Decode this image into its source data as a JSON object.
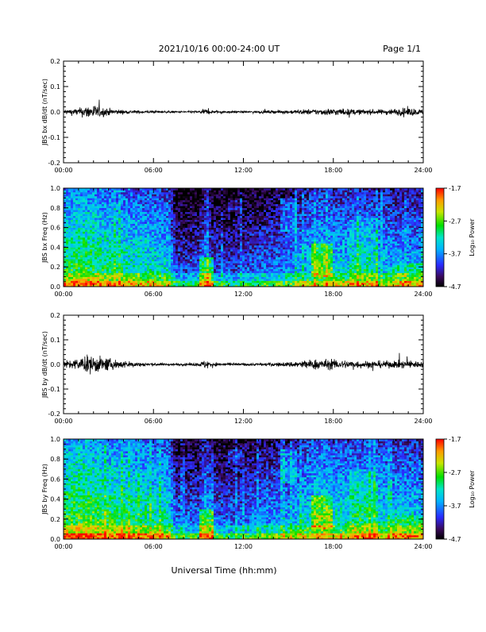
{
  "header": {
    "title": "2021/10/16   00:00-24:00 UT",
    "page": "Page 1/1"
  },
  "footer": {
    "xlabel": "Universal Time (hh:mm)"
  },
  "colorbar": {
    "label": "Log₁₀ Power",
    "ticks": [
      "-1.7",
      "-2.7",
      "-3.7",
      "-4.7"
    ],
    "values": [
      -1.7,
      -2.7,
      -3.7,
      -4.7
    ],
    "range": [
      -4.7,
      -1.7
    ]
  },
  "chart_data": [
    {
      "type": "line",
      "panel": "bx-waveform",
      "ylabel": "JBS bx dB/dt (nT/sec)",
      "ylim": [
        -0.2,
        0.2
      ],
      "yticks": [
        "0.2",
        "0.1",
        "0.0",
        "-0.1",
        "-0.2"
      ],
      "ytick_values": [
        0.2,
        0.1,
        0.0,
        -0.1,
        -0.2
      ],
      "xlim": [
        "00:00",
        "24:00"
      ],
      "xticks": [
        "00:00",
        "06:00",
        "12:00",
        "18:00",
        "24:00"
      ],
      "envelope": {
        "x_hours": [
          0,
          1,
          1.5,
          2,
          2.5,
          3,
          4,
          6,
          7,
          8,
          9,
          9.5,
          10,
          11,
          12,
          13,
          14,
          15,
          16,
          17,
          18,
          19,
          20,
          21,
          22,
          23,
          24
        ],
        "amplitude": [
          0.02,
          0.03,
          0.05,
          0.06,
          0.04,
          0.03,
          0.015,
          0.01,
          0.008,
          0.008,
          0.01,
          0.025,
          0.012,
          0.008,
          0.008,
          0.01,
          0.012,
          0.015,
          0.02,
          0.025,
          0.03,
          0.025,
          0.02,
          0.02,
          0.025,
          0.035,
          0.02
        ]
      }
    },
    {
      "type": "heatmap",
      "panel": "bx-spectrogram",
      "ylabel": "JBS bx Freq (Hz)",
      "ylim": [
        0.0,
        1.0
      ],
      "yticks": [
        "1.0",
        "0.8",
        "0.6",
        "0.4",
        "0.2",
        "0.0"
      ],
      "ytick_values": [
        1.0,
        0.8,
        0.6,
        0.4,
        0.2,
        0.0
      ],
      "xlim": [
        "00:00",
        "24:00"
      ],
      "xticks": [
        "00:00",
        "06:00",
        "12:00",
        "18:00",
        "24:00"
      ],
      "zlim": [
        -4.7,
        -1.7
      ]
    },
    {
      "type": "line",
      "panel": "by-waveform",
      "ylabel": "JBS by dB/dt (nT/sec)",
      "ylim": [
        -0.2,
        0.2
      ],
      "yticks": [
        "0.2",
        "0.1",
        "0.0",
        "-0.1",
        "-0.2"
      ],
      "ytick_values": [
        0.2,
        0.1,
        0.0,
        -0.1,
        -0.2
      ],
      "xlim": [
        "00:00",
        "24:00"
      ],
      "xticks": [
        "00:00",
        "06:00",
        "12:00",
        "18:00",
        "24:00"
      ],
      "envelope": {
        "x_hours": [
          0,
          1,
          1.5,
          2,
          2.5,
          3,
          4,
          6,
          7,
          8,
          9,
          9.5,
          10,
          11,
          12,
          13,
          14,
          15,
          16,
          17,
          18,
          19,
          20,
          21,
          22,
          23,
          24
        ],
        "amplitude": [
          0.03,
          0.05,
          0.07,
          0.08,
          0.06,
          0.05,
          0.03,
          0.012,
          0.01,
          0.01,
          0.015,
          0.04,
          0.015,
          0.01,
          0.01,
          0.012,
          0.015,
          0.02,
          0.035,
          0.045,
          0.04,
          0.035,
          0.03,
          0.03,
          0.03,
          0.035,
          0.025
        ]
      }
    },
    {
      "type": "heatmap",
      "panel": "by-spectrogram",
      "ylabel": "JBS by Freq (Hz)",
      "ylim": [
        0.0,
        1.0
      ],
      "yticks": [
        "1.0",
        "0.8",
        "0.6",
        "0.4",
        "0.2",
        "0.0"
      ],
      "ytick_values": [
        1.0,
        0.8,
        0.6,
        0.4,
        0.2,
        0.0
      ],
      "xlim": [
        "00:00",
        "24:00"
      ],
      "xticks": [
        "00:00",
        "06:00",
        "12:00",
        "18:00",
        "24:00"
      ],
      "zlim": [
        -4.7,
        -1.7
      ]
    }
  ]
}
